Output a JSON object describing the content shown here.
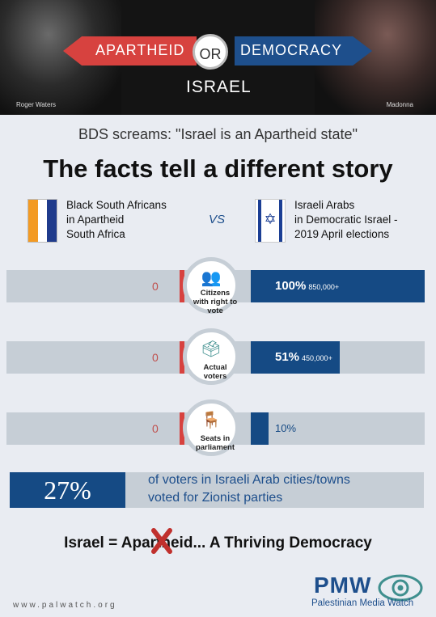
{
  "banner": {
    "left_word": "APARTHEID",
    "or_word": "OR",
    "right_word": "DEMOCRACY",
    "subject": "ISRAEL",
    "left_caption": "Roger Waters",
    "right_caption": "Madonna"
  },
  "bds_line": "BDS screams: \"Israel is an Apartheid state\"",
  "headline": "The facts tell a different story",
  "comparison": {
    "left": {
      "line1": "Black South Africans",
      "line2": "in Apartheid",
      "line3": "South Africa"
    },
    "vs": "VS",
    "right": {
      "line1": "Israeli Arabs",
      "line2": "in Democratic Israel -",
      "line3": "2019 April elections"
    }
  },
  "rows": [
    {
      "label1": "Citizens",
      "label2": "with right to",
      "label3": "vote",
      "left_value": "0",
      "right_value": "100%",
      "right_count": "850,000+",
      "icon": "people-icon",
      "fill": 1.0
    },
    {
      "label1": "Actual",
      "label2": "voters",
      "label3": "",
      "left_value": "0",
      "right_value": "51%",
      "right_count": "450,000+",
      "icon": "ballot-box-icon",
      "fill": 0.51
    },
    {
      "label1": "Seats in",
      "label2": "parliament",
      "label3": "",
      "left_value": "0",
      "right_value": "10%",
      "right_count": "",
      "icon": "chair-icon",
      "fill": 0.1
    }
  ],
  "percent_box": {
    "value": "27%",
    "line1": "of voters in Israeli Arab cities/towns",
    "line2": "voted for Zionist parties"
  },
  "conclusion": "Israel = Apartheid...  A Thriving Democracy",
  "footer": {
    "site": "www.palwatch.org",
    "logo": "PMW",
    "logo_sub": "Palestinian Media Watch"
  },
  "colors": {
    "red": "#d7423f",
    "blue": "#154a84",
    "bar_gray": "#c6ced6",
    "teal": "#3f8f8e"
  }
}
